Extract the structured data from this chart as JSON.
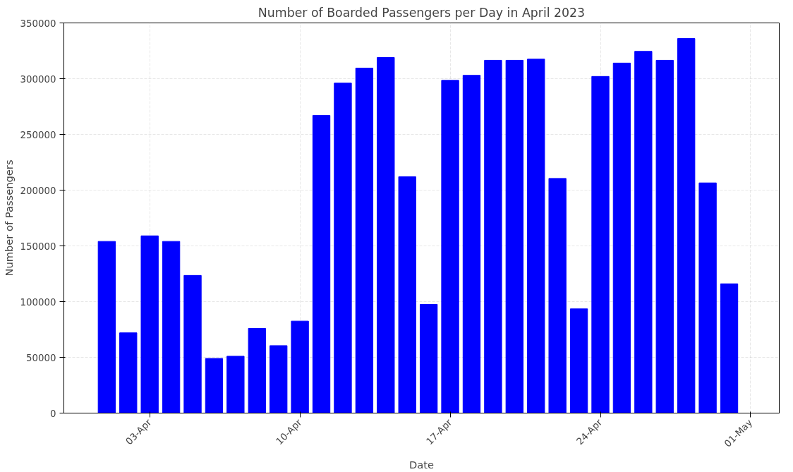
{
  "chart_data": {
    "type": "bar",
    "title": "Number of Boarded Passengers per Day in April 2023",
    "xlabel": "Date",
    "ylabel": "Number of Passengers",
    "x": [
      "2023-04-01",
      "2023-04-02",
      "2023-04-03",
      "2023-04-04",
      "2023-04-05",
      "2023-04-06",
      "2023-04-07",
      "2023-04-08",
      "2023-04-09",
      "2023-04-10",
      "2023-04-11",
      "2023-04-12",
      "2023-04-13",
      "2023-04-14",
      "2023-04-15",
      "2023-04-16",
      "2023-04-17",
      "2023-04-18",
      "2023-04-19",
      "2023-04-20",
      "2023-04-21",
      "2023-04-22",
      "2023-04-23",
      "2023-04-24",
      "2023-04-25",
      "2023-04-26",
      "2023-04-27",
      "2023-04-28",
      "2023-04-29",
      "2023-04-30"
    ],
    "values": [
      154000,
      72000,
      159000,
      154000,
      123500,
      49000,
      51000,
      76000,
      60500,
      82500,
      267000,
      296000,
      309500,
      319000,
      212000,
      97500,
      298500,
      303000,
      316500,
      316500,
      317500,
      210500,
      93500,
      302000,
      314000,
      324500,
      316500,
      336000,
      206500,
      116000
    ],
    "color": "#0000ff",
    "xlim": [
      "2023-03-30",
      "2023-05-02T08:00"
    ],
    "xticks": [
      {
        "value": "2023-04-03",
        "label": "03-Apr"
      },
      {
        "value": "2023-04-10",
        "label": "10-Apr"
      },
      {
        "value": "2023-04-17",
        "label": "17-Apr"
      },
      {
        "value": "2023-04-24",
        "label": "24-Apr"
      },
      {
        "value": "2023-05-01",
        "label": "01-May"
      }
    ],
    "ylim": [
      0,
      350000
    ],
    "yticks": [
      0,
      50000,
      100000,
      150000,
      200000,
      250000,
      300000,
      350000
    ],
    "grid": true
  }
}
